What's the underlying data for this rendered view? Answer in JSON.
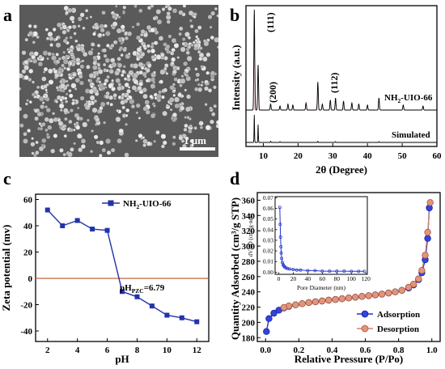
{
  "panels": {
    "a": "a",
    "b": "b",
    "c": "c",
    "d": "d"
  },
  "sem": {
    "scale_label": "1 μm"
  },
  "chart_data": [
    {
      "type": "line",
      "panel": "b",
      "xlabel": "2θ (Degree)",
      "ylabel": "Intensity (a.u.)",
      "xlim": [
        5,
        60
      ],
      "xticks": [
        10,
        20,
        30,
        40,
        50,
        60
      ],
      "series": [
        {
          "name": "NH2-UIO-66",
          "label_main": "NH",
          "label_sub": "2",
          "label_rest": "-UIO-66",
          "peaks": [
            [
              7.4,
              1.0
            ],
            [
              8.5,
              0.45
            ],
            [
              12.1,
              0.06
            ],
            [
              14.8,
              0.04
            ],
            [
              17.1,
              0.06
            ],
            [
              18.5,
              0.05
            ],
            [
              22.3,
              0.07
            ],
            [
              25.7,
              0.28
            ],
            [
              27.0,
              0.06
            ],
            [
              29.3,
              0.1
            ],
            [
              30.8,
              0.12
            ],
            [
              33.1,
              0.09
            ],
            [
              35.5,
              0.07
            ],
            [
              37.5,
              0.06
            ],
            [
              40.0,
              0.05
            ],
            [
              43.3,
              0.12
            ],
            [
              50.3,
              0.05
            ],
            [
              56.0,
              0.04
            ]
          ]
        },
        {
          "name": "Simulated",
          "peaks": [
            [
              7.4,
              1.0
            ],
            [
              8.5,
              0.65
            ],
            [
              12.1,
              0.04
            ],
            [
              14.8,
              0.03
            ],
            [
              25.7,
              0.04
            ],
            [
              30.8,
              0.03
            ],
            [
              43.3,
              0.03
            ]
          ]
        }
      ],
      "annotations": [
        "(111)",
        "(200)",
        "(112)"
      ],
      "grid": false
    },
    {
      "type": "line",
      "panel": "c",
      "xlabel": "pH",
      "ylabel": "Zeta potential (mv)",
      "xlim": [
        1.2,
        12.8
      ],
      "ylim": [
        -48,
        64
      ],
      "xticks": [
        2,
        4,
        6,
        8,
        10,
        12
      ],
      "yticks": [
        -40,
        -20,
        0,
        20,
        40,
        60
      ],
      "series": [
        {
          "name": "NH2-UIO-66",
          "label_main": "NH",
          "label_sub": "2",
          "label_rest": "-UIO-66",
          "color": "#2233aa",
          "x": [
            2,
            3,
            4,
            5,
            6,
            7,
            8,
            9,
            10,
            11,
            12
          ],
          "y": [
            52,
            40,
            44,
            37.5,
            36.5,
            -10,
            -14,
            -21,
            -28,
            -30,
            -33
          ]
        }
      ],
      "reference_line": {
        "y": 0,
        "color": "#c0643a"
      },
      "annotation": {
        "main": "pH",
        "sub": "PZC",
        "rest": "=6.79"
      },
      "legend": "top-right",
      "grid": false
    },
    {
      "type": "line",
      "panel": "d",
      "xlabel": "Relative Pressure (P/Po)",
      "ylabel": "Quantity Adsorbed (cm³/g STP)",
      "xlim": [
        -0.05,
        1.05
      ],
      "ylim": [
        175,
        370
      ],
      "xticks": [
        0.0,
        0.2,
        0.4,
        0.6,
        0.8,
        1.0
      ],
      "yticks": [
        180,
        200,
        220,
        240,
        260,
        280,
        300,
        320,
        340,
        360
      ],
      "series": [
        {
          "name": "Adsorption",
          "color": "#2233cc",
          "x": [
            0.005,
            0.02,
            0.05,
            0.08,
            0.11,
            0.14,
            0.18,
            0.22,
            0.26,
            0.3,
            0.34,
            0.38,
            0.42,
            0.46,
            0.5,
            0.54,
            0.58,
            0.62,
            0.66,
            0.7,
            0.74,
            0.78,
            0.82,
            0.86,
            0.89,
            0.92,
            0.94,
            0.96,
            0.975,
            0.985
          ],
          "y": [
            188,
            205,
            212,
            216,
            219,
            221,
            223,
            224.5,
            226,
            227,
            228,
            229,
            230,
            231,
            232,
            233,
            234,
            235,
            236,
            237,
            238.5,
            240,
            242,
            245,
            249,
            256,
            265,
            282,
            310,
            350
          ]
        },
        {
          "name": "Desorption",
          "color": "#d9826a",
          "x": [
            0.99,
            0.975,
            0.96,
            0.94,
            0.92,
            0.89,
            0.86,
            0.82,
            0.78,
            0.74,
            0.7,
            0.66,
            0.62,
            0.58,
            0.54,
            0.5,
            0.46,
            0.42,
            0.38,
            0.34,
            0.3,
            0.26,
            0.22,
            0.18,
            0.14,
            0.11
          ],
          "y": [
            357,
            318,
            288,
            268,
            257,
            250,
            246,
            242,
            240,
            238.5,
            237,
            236,
            235,
            234,
            233,
            232,
            231,
            230,
            229,
            228,
            227,
            226,
            224.5,
            223,
            221.5,
            219.5
          ]
        }
      ],
      "legend": "bottom-right",
      "inset": {
        "type": "line",
        "xlabel": "Pore Diameter (nm)",
        "ylabel": "dV/dD (cm³/g·nm)",
        "xlim": [
          -5,
          122
        ],
        "ylim": [
          -0.002,
          0.071
        ],
        "xticks": [
          0,
          20,
          40,
          60,
          80,
          100,
          120
        ],
        "yticks": [
          0.0,
          0.01,
          0.02,
          0.03,
          0.04,
          0.05,
          0.06,
          0.07
        ],
        "series": [
          {
            "color": "#2233cc",
            "x": [
              1.5,
              2,
              2.5,
              3,
              3.5,
              4,
              5,
              6,
              7,
              8,
              10,
              12,
              15,
              20,
              25,
              30,
              40,
              50,
              60,
              70,
              80,
              90,
              100,
              110,
              118
            ],
            "y": [
              0.061,
              0.045,
              0.033,
              0.024,
              0.018,
              0.013,
              0.009,
              0.007,
              0.006,
              0.005,
              0.004,
              0.0035,
              0.003,
              0.0025,
              0.002,
              0.002,
              0.0015,
              0.0015,
              0.001,
              0.001,
              0.001,
              0.001,
              0.0008,
              0.0008,
              0.0008
            ]
          }
        ]
      }
    }
  ]
}
